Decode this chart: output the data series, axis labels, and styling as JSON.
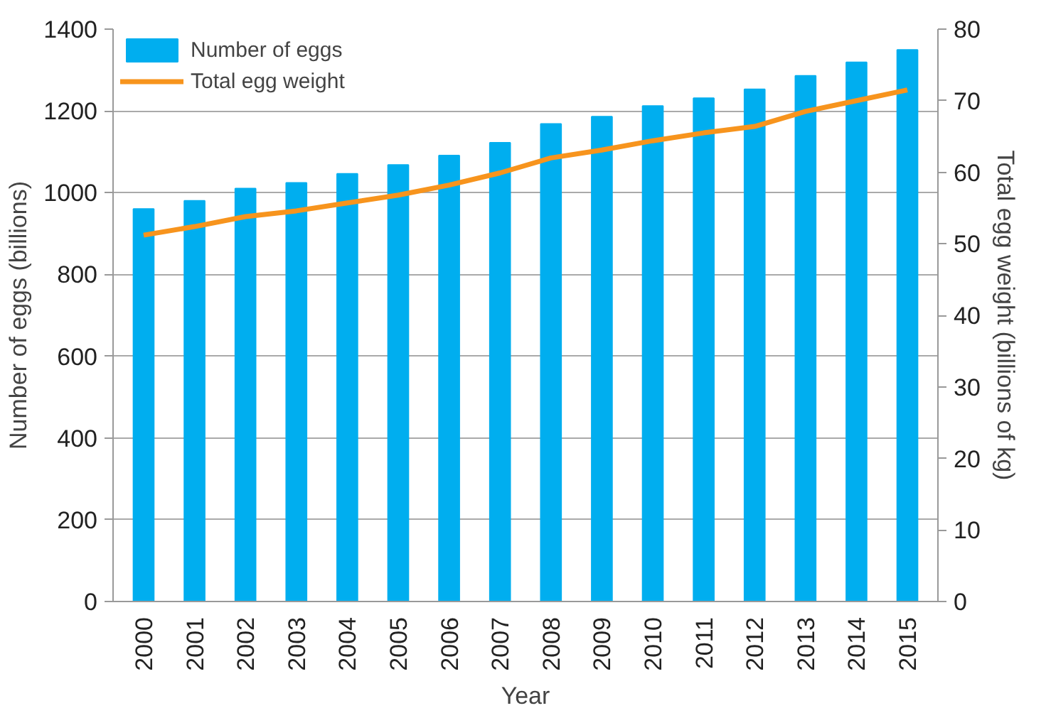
{
  "chart_data": {
    "type": "bar",
    "xlabel": "Year",
    "ylabel": "Number of eggs (billions)",
    "y2label": "Total egg weight (billions of kg)",
    "categories": [
      "2000",
      "2001",
      "2002",
      "2003",
      "2004",
      "2005",
      "2006",
      "2007",
      "2008",
      "2009",
      "2010",
      "2011",
      "2012",
      "2013",
      "2014",
      "2015"
    ],
    "series": [
      {
        "name": "Number of eggs",
        "color": "#00aeef",
        "values": [
          960,
          980,
          1010,
          1024,
          1046,
          1068,
          1091,
          1122,
          1168,
          1186,
          1212,
          1231,
          1253,
          1286,
          1319,
          1349
        ]
      },
      {
        "name": "Total egg weight",
        "type": "line",
        "axis": "y2",
        "color": "#f7941d",
        "values": [
          51.2,
          52.4,
          53.8,
          54.6,
          55.7,
          56.8,
          58.2,
          59.9,
          62.0,
          63.1,
          64.4,
          65.5,
          66.4,
          68.5,
          70.0,
          71.5
        ]
      }
    ],
    "ylim": [
      0,
      1400
    ],
    "yticks": [
      0,
      200,
      400,
      600,
      800,
      1000,
      1200,
      1400
    ],
    "y2lim": [
      0,
      80
    ],
    "y2ticks": [
      0,
      10,
      20,
      30,
      40,
      50,
      60,
      70,
      80
    ],
    "grid": "y",
    "legend": "top left"
  }
}
